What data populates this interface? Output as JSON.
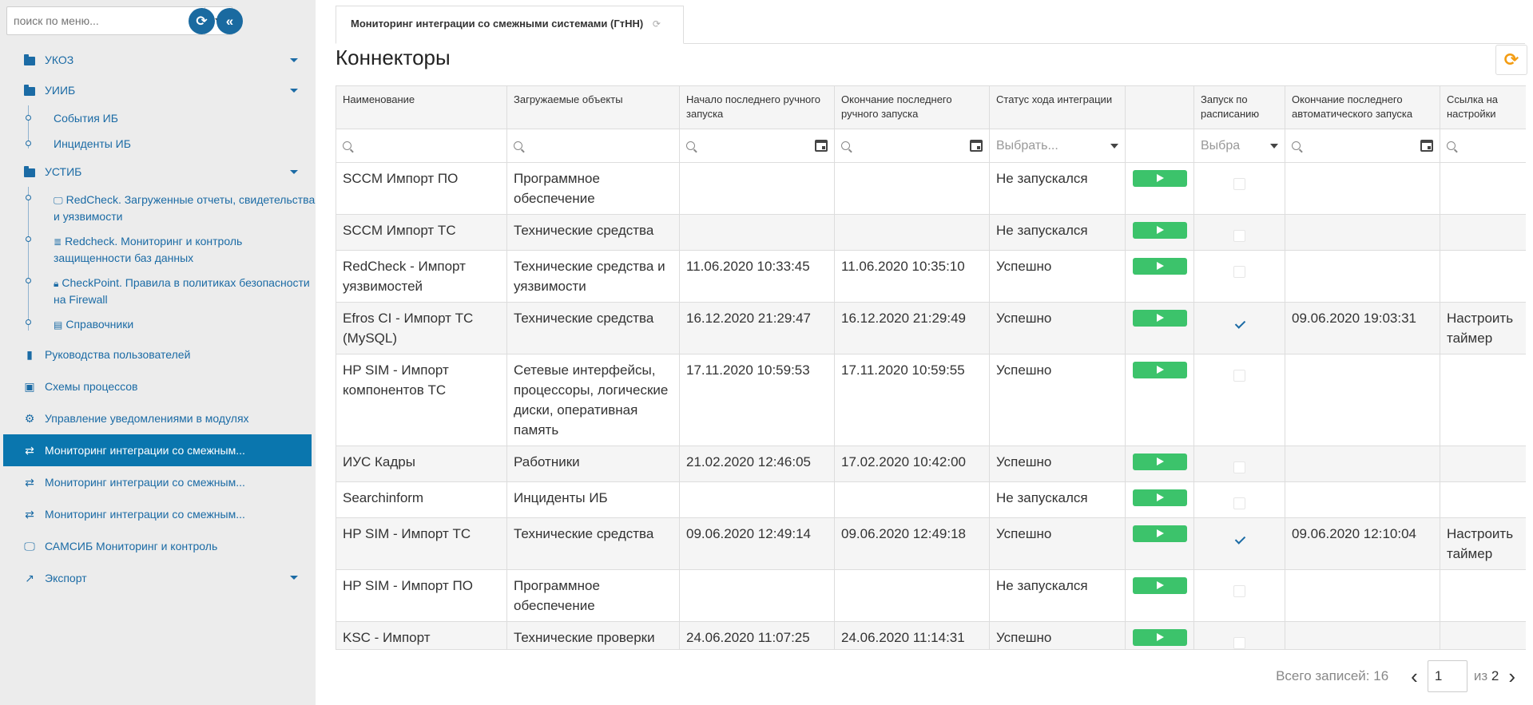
{
  "sidebar": {
    "search_placeholder": "поиск по меню...",
    "items": [
      {
        "label": "УКОЗ"
      },
      {
        "label": "УИИБ"
      },
      {
        "label": "События ИБ"
      },
      {
        "label": "Инциденты ИБ"
      },
      {
        "label": "УСТИБ"
      },
      {
        "label": "RedCheck. Загруженные отчеты, свидетельства и уязвимости"
      },
      {
        "label": "Redcheck. Мониторинг и контроль защищенности баз данных"
      },
      {
        "label": "CheckPoint. Правила в политиках безопасности на Firewall"
      },
      {
        "label": "Справочники"
      },
      {
        "label": "Руководства пользователей"
      },
      {
        "label": "Схемы процессов"
      },
      {
        "label": "Управление уведомлениями в модулях"
      },
      {
        "label": "Мониторинг интеграции со смежным..."
      },
      {
        "label": "Мониторинг интеграции со смежным..."
      },
      {
        "label": "Мониторинг интеграции со смежным..."
      },
      {
        "label": "САМСИБ Мониторинг и контроль"
      },
      {
        "label": "Экспорт"
      }
    ]
  },
  "tab": {
    "label": "Мониторинг интеграции со смежными системами (ГтНН)"
  },
  "page_title": "Коннекторы",
  "table": {
    "columns": [
      "Наименование",
      "Загружаемые объекты",
      "Начало последнего ручного запуска",
      "Окончание последнего ручного запуска",
      "Статус хода интеграции",
      "",
      "Запуск по расписанию",
      "Окончание последнего автоматического запуска",
      "Ссылка на настройки"
    ],
    "filter_status_placeholder": "Выбрать...",
    "filter_schedule_placeholder": "Выбра",
    "rows": [
      {
        "name": "SCCM Импорт ПО",
        "objects": "Программное обеспечение",
        "start": "",
        "end": "",
        "status": "Не запускался",
        "ok": false,
        "scheduled": false,
        "auto_end": "",
        "link": ""
      },
      {
        "name": "SCCM Импорт ТС",
        "objects": "Технические средства",
        "start": "",
        "end": "",
        "status": "Не запускался",
        "ok": false,
        "scheduled": false,
        "auto_end": "",
        "link": ""
      },
      {
        "name": "RedCheck - Импорт уязвимостей",
        "objects": "Технические средства и уязвимости",
        "start": "11.06.2020 10:33:45",
        "end": "11.06.2020 10:35:10",
        "status": "Успешно",
        "ok": true,
        "scheduled": false,
        "auto_end": "",
        "link": ""
      },
      {
        "name": "Efros CI - Импорт ТС (MySQL)",
        "objects": "Технические средства",
        "start": "16.12.2020 21:29:47",
        "end": "16.12.2020 21:29:49",
        "status": "Успешно",
        "ok": true,
        "scheduled": true,
        "auto_end": "09.06.2020 19:03:31",
        "link": "Настроить таймер"
      },
      {
        "name": "HP SIM - Импорт компонентов ТС",
        "objects": "Сетевые интерфейсы, процессоры, логические диски, оперативная память",
        "start": "17.11.2020 10:59:53",
        "end": "17.11.2020 10:59:55",
        "status": "Успешно",
        "ok": true,
        "scheduled": false,
        "auto_end": "",
        "link": ""
      },
      {
        "name": "ИУС Кадры",
        "objects": "Работники",
        "start": "21.02.2020 12:46:05",
        "end": "17.02.2020 10:42:00",
        "status": "Успешно",
        "ok": true,
        "scheduled": false,
        "auto_end": "",
        "link": ""
      },
      {
        "name": "Searchinform",
        "objects": "Инциденты ИБ",
        "start": "",
        "end": "",
        "status": "Не запускался",
        "ok": false,
        "scheduled": false,
        "auto_end": "",
        "link": ""
      },
      {
        "name": "HP SIM - Импорт ТС",
        "objects": "Технические средства",
        "start": "09.06.2020 12:49:14",
        "end": "09.06.2020 12:49:18",
        "status": "Успешно",
        "ok": true,
        "scheduled": true,
        "auto_end": "09.06.2020 12:10:04",
        "link": "Настроить таймер"
      },
      {
        "name": "HP SIM - Импорт ПО",
        "objects": "Программное обеспечение",
        "start": "",
        "end": "",
        "status": "Не запускался",
        "ok": false,
        "scheduled": false,
        "auto_end": "",
        "link": ""
      },
      {
        "name": "KSC - Импорт технических проверок",
        "objects": "Технические проверки по антивирусной защите",
        "start": "24.06.2020 11:07:25",
        "end": "24.06.2020 11:14:31",
        "status": "Успешно",
        "ok": true,
        "scheduled": false,
        "auto_end": "",
        "link": ""
      }
    ]
  },
  "pager": {
    "total_label": "Всего записей: 16",
    "current_page": "1",
    "of_label": "из",
    "total_pages": "2"
  },
  "colors": {
    "accent": "#0a76ae",
    "success": "#28a745",
    "play": "#3cc36b",
    "refresh": "#f39c12"
  }
}
